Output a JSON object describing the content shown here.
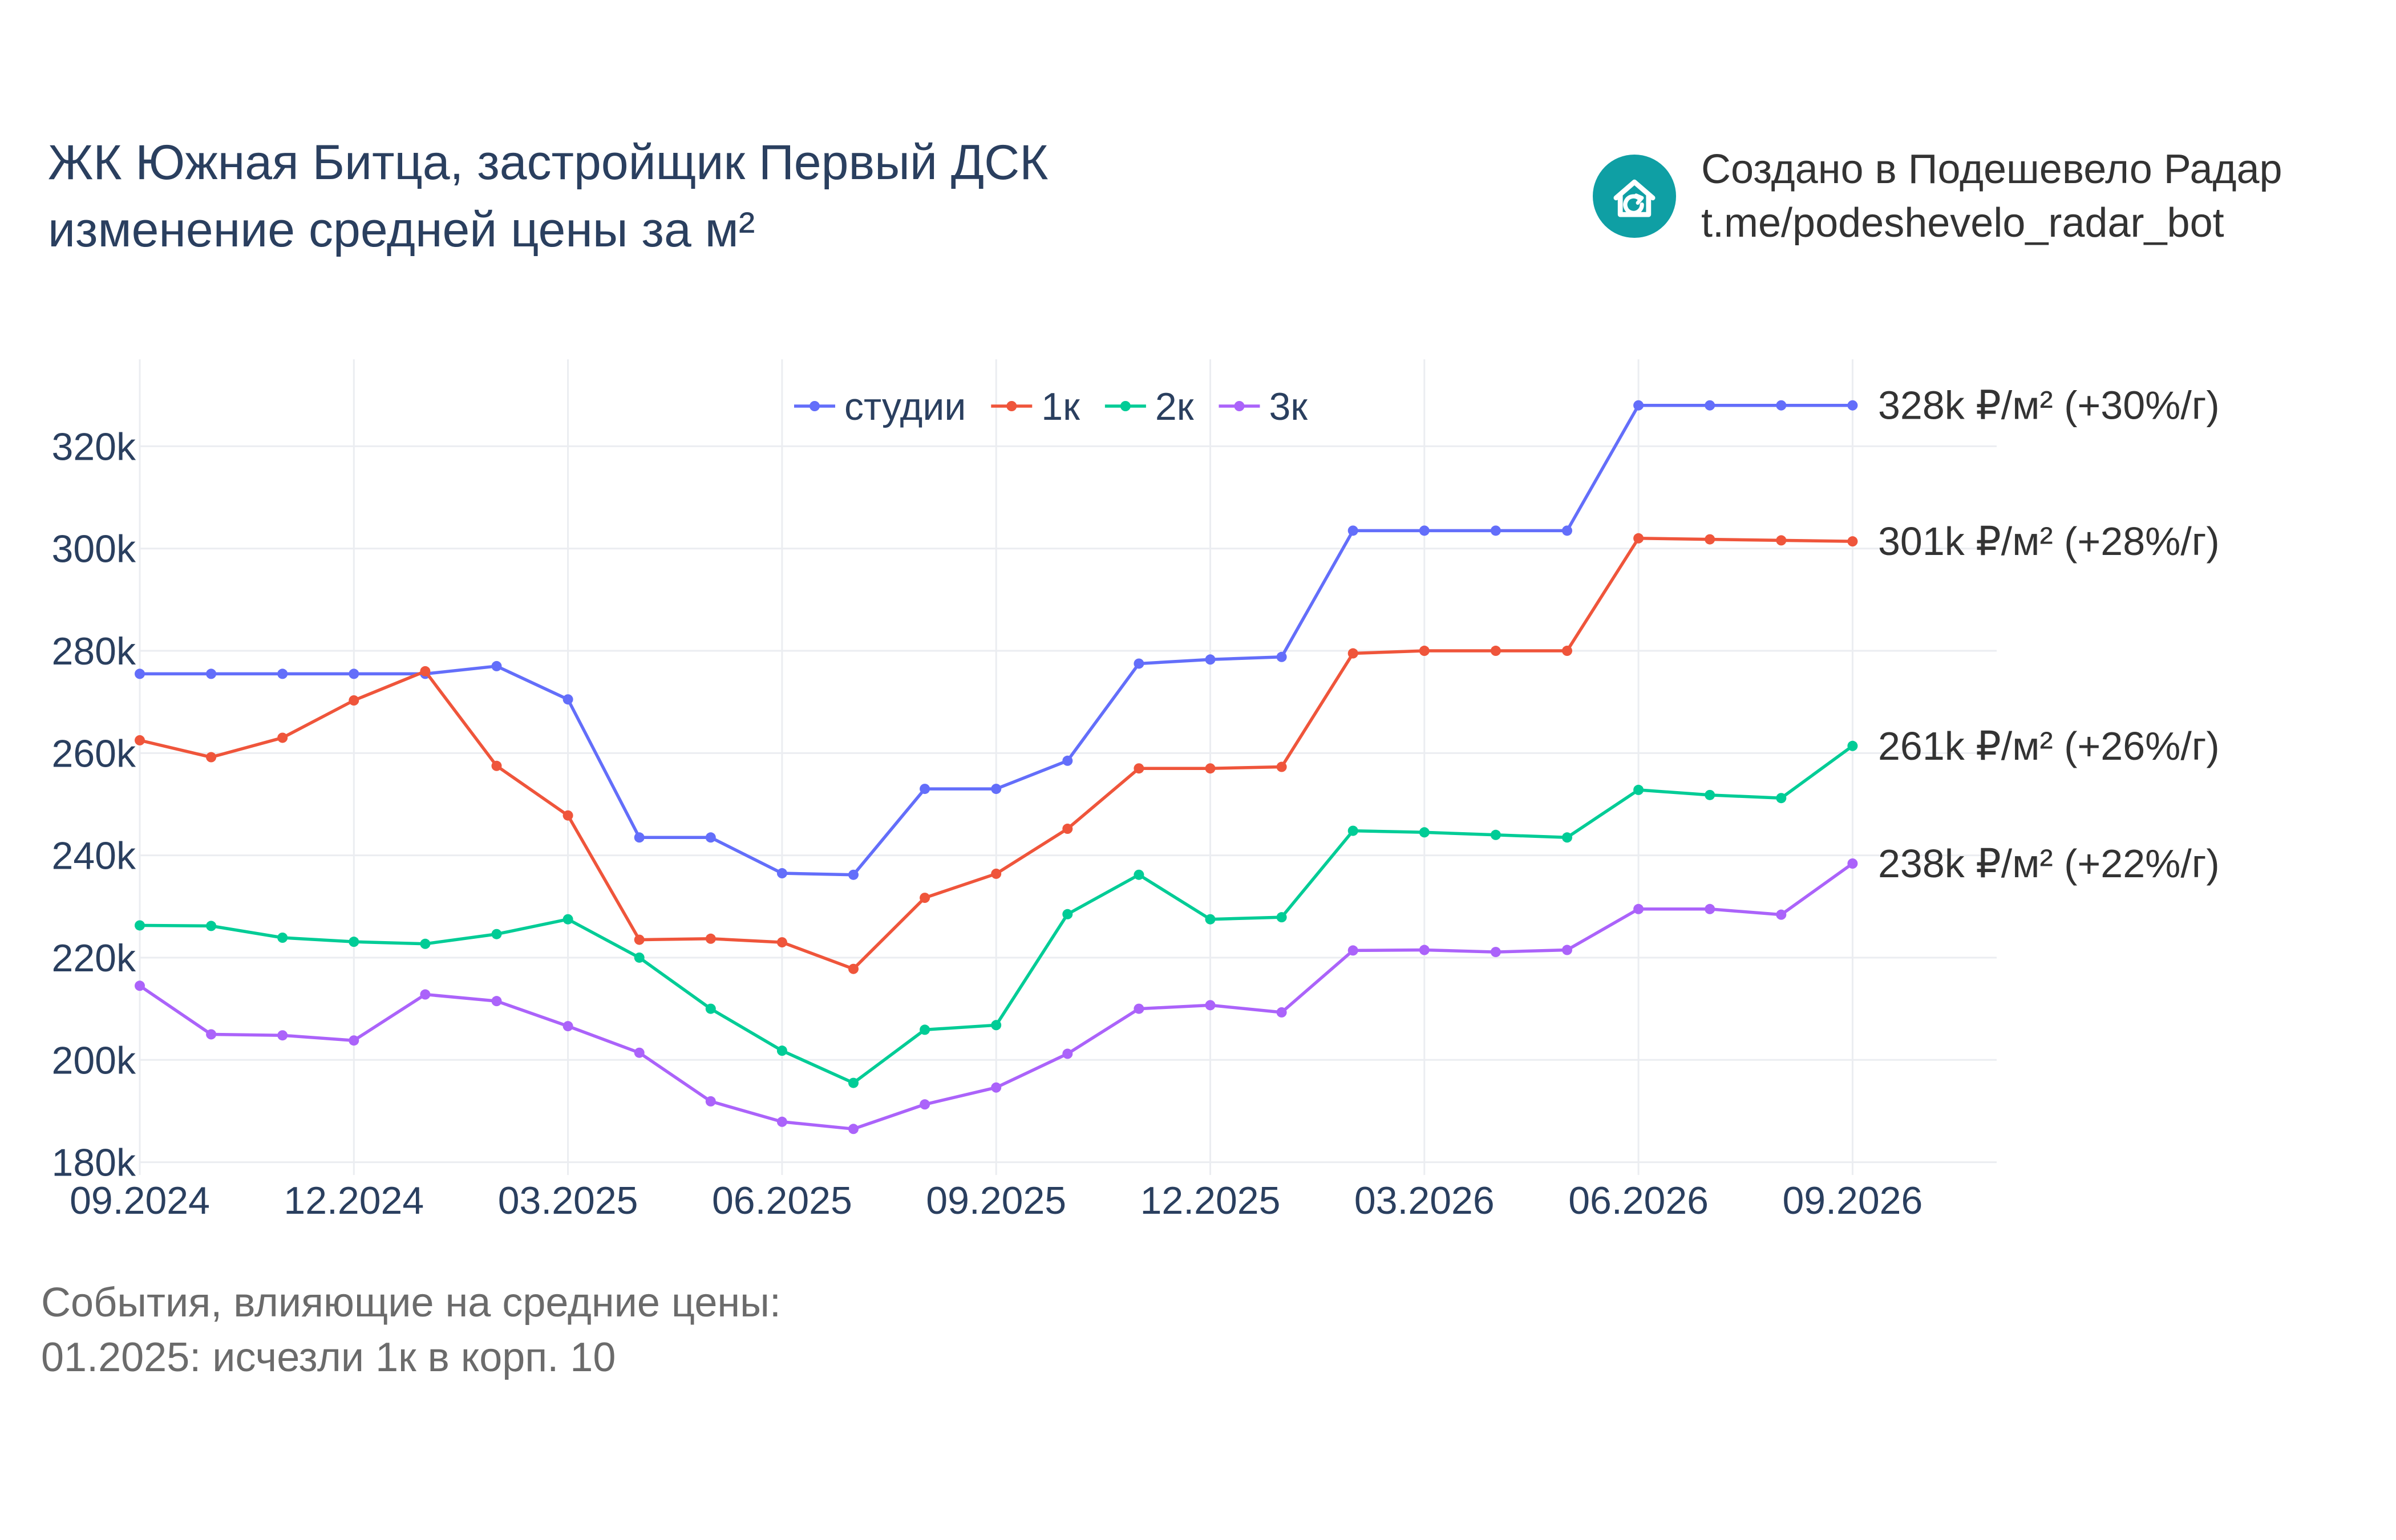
{
  "header": {
    "title_line1": "ЖК Южная Битца, застройщик Первый ДСК",
    "title_line2": "изменение средней цены за м²"
  },
  "brand": {
    "line1": "Создано в Подешевело Радар",
    "line2": "t.me/podeshevelo_radar_bot",
    "icon": "house-refresh-icon",
    "color": "#0f9fa4"
  },
  "events": {
    "heading": "События, влияющие на средние цены:",
    "items": [
      "01.2025: исчезли 1к в корп. 10"
    ]
  },
  "chart_data": {
    "type": "line",
    "x": [
      "2024-09",
      "2024-10",
      "2024-11",
      "2024-12",
      "2025-01",
      "2025-02",
      "2025-03",
      "2025-04",
      "2025-05",
      "2025-06",
      "2025-07",
      "2025-08",
      "2025-09",
      "2025-10",
      "2025-11",
      "2025-12",
      "2026-01",
      "2026-02",
      "2026-03",
      "2026-04",
      "2026-05",
      "2026-06",
      "2026-07",
      "2026-08",
      "2026-09"
    ],
    "x_ticks": [
      "09.2024",
      "12.2024",
      "03.2025",
      "06.2025",
      "09.2025",
      "12.2025",
      "03.2026",
      "06.2026",
      "09.2026"
    ],
    "y_ticks": [
      "180k",
      "200k",
      "220k",
      "240k",
      "260k",
      "280k",
      "300k",
      "320k"
    ],
    "y_tick_values": [
      180000,
      200000,
      220000,
      240000,
      260000,
      280000,
      300000,
      320000
    ],
    "ylim": [
      177500,
      337000
    ],
    "grid": true,
    "legend_position": "top-center",
    "series": [
      {
        "name": "студии",
        "color": "#636efa",
        "end_label": "328k ₽/м² (+30%/г)",
        "values": [
          275500,
          275500,
          275500,
          275500,
          275500,
          277000,
          270500,
          243500,
          243500,
          236500,
          236200,
          253000,
          253000,
          258500,
          277500,
          278300,
          278800,
          303500,
          303500,
          303500,
          303500,
          328000,
          328000,
          328000,
          328000
        ]
      },
      {
        "name": "1к",
        "color": "#ef553b",
        "end_label": "301k ₽/м² (+28%/г)",
        "values": [
          262500,
          259200,
          263000,
          270300,
          276000,
          257500,
          247800,
          223500,
          223700,
          223000,
          217800,
          231700,
          236400,
          245200,
          257000,
          257000,
          257300,
          279500,
          280000,
          280000,
          280000,
          302000,
          301800,
          301600,
          301400
        ]
      },
      {
        "name": "2к",
        "color": "#00cc96",
        "end_label": "261k ₽/м² (+26%/г)",
        "values": [
          226300,
          226200,
          223900,
          223100,
          222700,
          224600,
          227500,
          220000,
          210000,
          201800,
          195500,
          205900,
          206800,
          228500,
          236200,
          227500,
          227900,
          244800,
          244500,
          244000,
          243500,
          252800,
          251800,
          251200,
          261400
        ]
      },
      {
        "name": "3к",
        "color": "#ab63fa",
        "end_label": "238k ₽/м² (+22%/г)",
        "values": [
          214500,
          205000,
          204800,
          203800,
          212800,
          211500,
          206600,
          201400,
          191900,
          187900,
          186500,
          191300,
          194600,
          201200,
          210000,
          210700,
          209300,
          221400,
          221500,
          221100,
          221500,
          229500,
          229500,
          228400,
          238400
        ]
      }
    ]
  }
}
